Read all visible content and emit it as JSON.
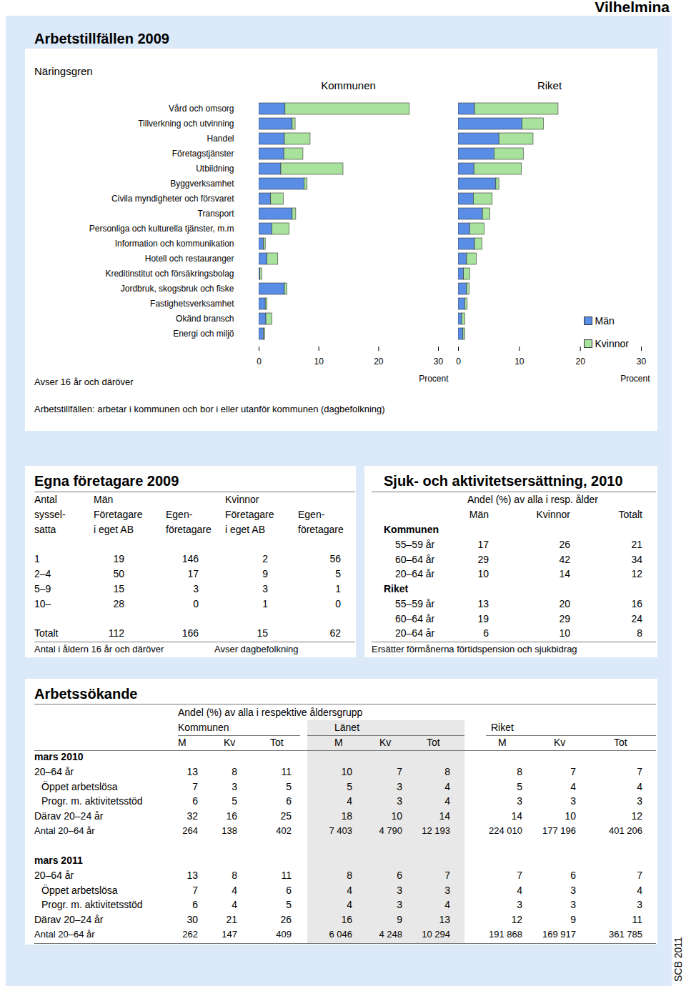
{
  "header": {
    "municipality": "Vilhelmina",
    "source": "SCB 2011"
  },
  "arbetstillfallen": {
    "title": "Arbetstillfällen 2009",
    "note": "Avser 16 år och däröver",
    "caption": "Arbetstillfällen: arbetar i kommunen och bor i eller utanför kommunen (dagbefolkning)"
  },
  "chart_data": [
    {
      "type": "bar",
      "title": "Kommunen",
      "orientation": "horizontal",
      "stacked": true,
      "y_label": "Näringsgren",
      "x_label": "Procent",
      "categories": [
        "Vård och omsorg",
        "Tillverkning och utvinning",
        "Handel",
        "Företagstjänster",
        "Utbildning",
        "Byggverksamhet",
        "Civila myndigheter och försvaret",
        "Transport",
        "Personliga och kulturella tjänster, m.m",
        "Information och kommunikation",
        "Hotell och restauranger",
        "Kreditinstitut och försäkringsbolag",
        "Jordbruk, skogsbruk och fiske",
        "Fastighetsverksamhet",
        "Okänd bransch",
        "Energi och miljö"
      ],
      "series": [
        {
          "name": "Män",
          "color": "#5a8ee6",
          "values": [
            4.4,
            5.6,
            4.3,
            4.2,
            3.7,
            7.6,
            2.0,
            5.6,
            2.2,
            0.8,
            1.4,
            0.2,
            4.3,
            1.1,
            1.2,
            0.8
          ]
        },
        {
          "name": "Kvinnor",
          "color": "#a8e29c",
          "values": [
            20.8,
            0.5,
            4.3,
            3.2,
            10.4,
            0.5,
            2.1,
            0.6,
            2.9,
            0.3,
            1.8,
            0.3,
            0.4,
            0.3,
            1.0,
            0.2
          ]
        }
      ],
      "xlim": [
        0,
        30
      ],
      "xticks": [
        0,
        10,
        20,
        30
      ]
    },
    {
      "type": "bar",
      "title": "Riket",
      "orientation": "horizontal",
      "stacked": true,
      "x_label": "Procent",
      "tick_labels": "x",
      "legend": "lower right",
      "categories": [
        "Vård och omsorg",
        "Tillverkning och utvinning",
        "Handel",
        "Företagstjänster",
        "Utbildning",
        "Byggverksamhet",
        "Civila myndigheter och försvaret",
        "Transport",
        "Personliga och kulturella tjänster, m.m",
        "Information och kommunikation",
        "Hotell och restauranger",
        "Kreditinstitut och försäkringsbolag",
        "Jordbruk, skogsbruk och fiske",
        "Fastighetsverksamhet",
        "Okänd bransch",
        "Energi och miljö"
      ],
      "series": [
        {
          "name": "Män",
          "color": "#5a8ee6",
          "values": [
            2.7,
            10.5,
            6.7,
            5.9,
            2.6,
            6.2,
            2.5,
            4.0,
            1.9,
            2.7,
            1.4,
            0.9,
            1.4,
            1.1,
            0.6,
            0.8
          ]
        },
        {
          "name": "Kvinnor",
          "color": "#a8e29c",
          "values": [
            13.7,
            3.5,
            5.6,
            4.8,
            7.8,
            0.5,
            3.1,
            1.2,
            2.4,
            1.2,
            1.6,
            1.0,
            0.4,
            0.4,
            0.5,
            0.3
          ]
        }
      ],
      "xlim": [
        0,
        30
      ],
      "xticks": [
        0,
        10,
        20,
        30
      ]
    }
  ],
  "egna_foretagare": {
    "title": "Egna företagare 2009",
    "header": [
      [
        "Antal",
        "Män",
        null,
        "Kvinnor",
        null
      ],
      [
        "syssel-",
        "Företagare",
        "Egen-",
        "Företagare",
        "Egen-"
      ],
      [
        "satta",
        "i eget AB",
        "företagare",
        "i eget AB",
        "företagare"
      ]
    ],
    "rows": [
      [
        "1",
        "19",
        "146",
        "2",
        "56"
      ],
      [
        "2–4",
        "50",
        "17",
        "9",
        "5"
      ],
      [
        "5–9",
        "15",
        "3",
        "3",
        "1"
      ],
      [
        "10–",
        "28",
        "0",
        "1",
        "0"
      ]
    ],
    "total": [
      "Totalt",
      "112",
      "166",
      "15",
      "62"
    ],
    "notes": [
      "Antal i åldern 16 år och däröver",
      "Avser dagbefolkning"
    ]
  },
  "sjuk_aktivitet": {
    "title": "Sjuk- och aktivitetsersättning, 2010",
    "subtitle": "Andel (%) av alla i resp. ålder",
    "columns": [
      "Män",
      "Kvinnor",
      "Totalt"
    ],
    "groups": [
      {
        "name": "Kommunen",
        "rows": [
          [
            "55–59 år",
            "17",
            "26",
            "21"
          ],
          [
            "60–64 år",
            "29",
            "42",
            "34"
          ],
          [
            "20–64 år",
            "10",
            "14",
            "12"
          ]
        ]
      },
      {
        "name": "Riket",
        "rows": [
          [
            "55–59 år",
            "13",
            "20",
            "16"
          ],
          [
            "60–64 år",
            "19",
            "29",
            "24"
          ],
          [
            "20–64 år",
            "6",
            "10",
            "8"
          ]
        ]
      }
    ],
    "note": "Ersätter förmånerna förtidspension och sjukbidrag"
  },
  "arbetssokande": {
    "title": "Arbetssökande",
    "subtitle": "Andel (%) av alla i respektive åldersgrupp",
    "groups": [
      "Kommunen",
      "Länet",
      "Riket"
    ],
    "subcolumns": [
      "M",
      "Kv",
      "Tot"
    ],
    "periods": [
      {
        "name": "mars 2010",
        "rows": [
          [
            "20–64 år",
            "13",
            "8",
            "11",
            "10",
            "7",
            "8",
            "8",
            "7",
            "7"
          ],
          [
            "Öppet arbetslösa",
            "7",
            "3",
            "5",
            "5",
            "3",
            "4",
            "5",
            "4",
            "4"
          ],
          [
            "Progr. m. aktivitetsstöd",
            "6",
            "5",
            "6",
            "4",
            "3",
            "4",
            "3",
            "3",
            "3"
          ],
          [
            "Därav 20–24 år",
            "32",
            "16",
            "25",
            "18",
            "10",
            "14",
            "14",
            "10",
            "12"
          ],
          [
            "Antal 20–64 år",
            "264",
            "138",
            "402",
            "7 403",
            "4 790",
            "12 193",
            "224 010",
            "177 196",
            "401 206"
          ]
        ]
      },
      {
        "name": "mars 2011",
        "rows": [
          [
            "20–64 år",
            "13",
            "8",
            "11",
            "8",
            "6",
            "7",
            "7",
            "6",
            "7"
          ],
          [
            "Öppet arbetslösa",
            "7",
            "4",
            "6",
            "4",
            "3",
            "3",
            "4",
            "3",
            "4"
          ],
          [
            "Progr. m. aktivitetsstöd",
            "6",
            "4",
            "5",
            "4",
            "3",
            "4",
            "3",
            "3",
            "3"
          ],
          [
            "Därav 20–24 år",
            "30",
            "21",
            "26",
            "16",
            "9",
            "13",
            "12",
            "9",
            "11"
          ],
          [
            "Antal 20–64 år",
            "262",
            "147",
            "409",
            "6 046",
            "4 248",
            "10 294",
            "191 868",
            "169 917",
            "361 785"
          ]
        ]
      }
    ]
  }
}
